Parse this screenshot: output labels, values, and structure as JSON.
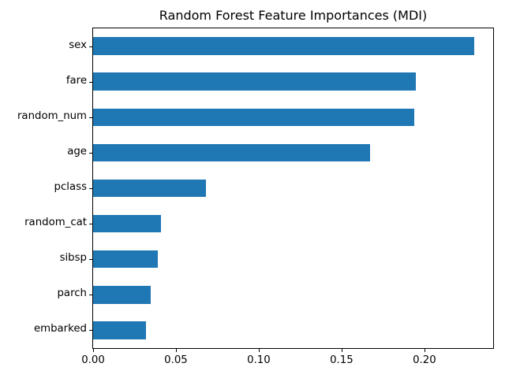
{
  "chart_data": {
    "type": "bar",
    "orientation": "horizontal",
    "title": "Random Forest Feature Importances (MDI)",
    "categories": [
      "sex",
      "fare",
      "random_num",
      "age",
      "pclass",
      "random_cat",
      "sibsp",
      "parch",
      "embarked"
    ],
    "values": [
      0.23,
      0.195,
      0.194,
      0.167,
      0.068,
      0.041,
      0.039,
      0.035,
      0.032
    ],
    "xlabel": "",
    "ylabel": "",
    "xlim": [
      0.0,
      0.2415
    ],
    "x_ticks": [
      "0.00",
      "0.05",
      "0.10",
      "0.15",
      "0.20"
    ],
    "x_tick_values": [
      0.0,
      0.05,
      0.1,
      0.15,
      0.2
    ],
    "bar_color": "#1f77b4",
    "grid": false,
    "legend_position": "none"
  }
}
